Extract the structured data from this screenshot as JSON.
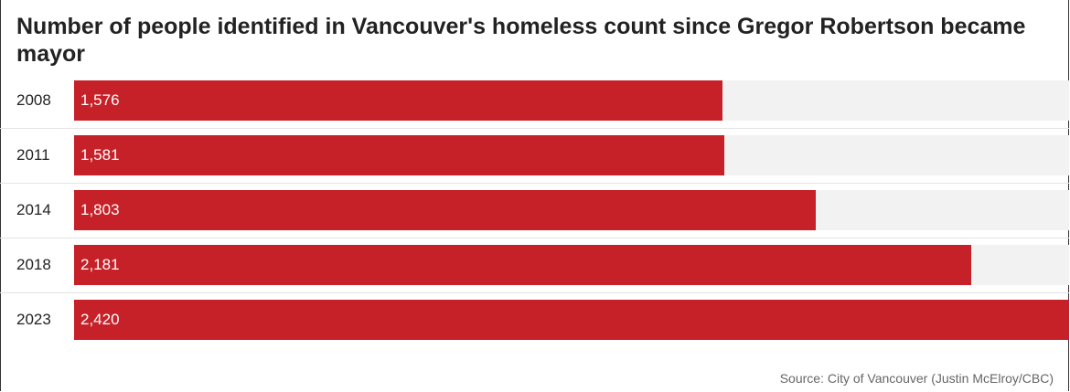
{
  "chart_data": {
    "type": "bar",
    "orientation": "horizontal",
    "title": "Number of people identified in Vancouver's homeless count since Gregor Robertson became mayor",
    "categories": [
      "2008",
      "2011",
      "2014",
      "2018",
      "2023"
    ],
    "values": [
      1576,
      1581,
      1803,
      2181,
      2420
    ],
    "value_labels": [
      "1,576",
      "1,581",
      "1,803",
      "2,181",
      "2,420"
    ],
    "xlim": [
      0,
      2420
    ],
    "source": "Source: City of Vancouver (Justin McElroy/CBC)",
    "colors": {
      "bar": "#c62128",
      "track": "#f2f2f2"
    }
  }
}
